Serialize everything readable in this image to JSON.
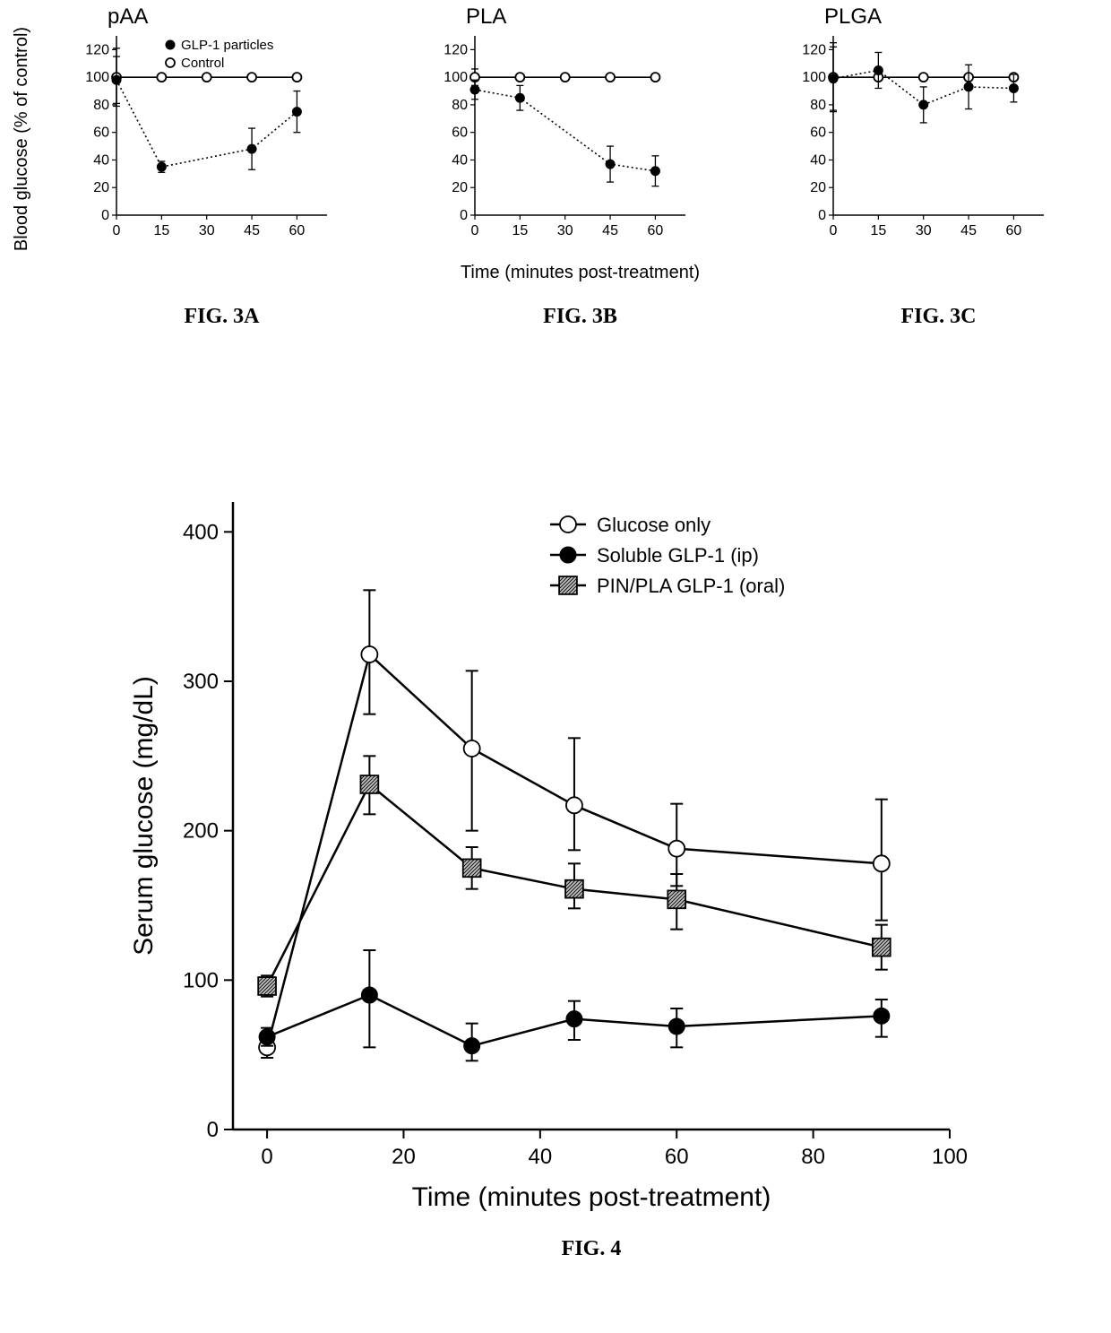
{
  "colors": {
    "bg": "#ffffff",
    "axis": "#000000",
    "text": "#000000",
    "line": "#000000",
    "open_fill": "#ffffff",
    "closed_fill": "#000000",
    "hatch_fill": "#555555"
  },
  "fonts": {
    "panel_title_size": 24,
    "panel_title_weight": "normal",
    "caption_size": 24,
    "caption_family": "Times New Roman, Times, serif",
    "axis_label_size": 20,
    "tick_size": 16,
    "legend_small_size": 15,
    "big_axis_label_size": 30,
    "big_tick_size": 24,
    "big_legend_size": 22
  },
  "top": {
    "shared_x_label": "Time (minutes post-treatment)",
    "shared_y_label": "Blood glucose (% of control)",
    "legend": {
      "panel": "pAA",
      "items": [
        {
          "label": "GLP-1 particles",
          "marker": "closed"
        },
        {
          "label": "Control",
          "marker": "open"
        }
      ]
    },
    "panels": [
      {
        "id": "pAA",
        "title": "pAA",
        "caption": "FIG. 3A",
        "xlim": [
          0,
          70
        ],
        "xticks": [
          0,
          15,
          30,
          45,
          60
        ],
        "ylim": [
          0,
          130
        ],
        "yticks": [
          0,
          20,
          40,
          60,
          80,
          100,
          120
        ],
        "series": [
          {
            "name": "control",
            "marker": "open",
            "dash": "none",
            "points": [
              {
                "x": 0,
                "y": 100,
                "elo": 21,
                "ehi": 21
              },
              {
                "x": 15,
                "y": 100
              },
              {
                "x": 30,
                "y": 100
              },
              {
                "x": 45,
                "y": 100
              },
              {
                "x": 60,
                "y": 100
              }
            ]
          },
          {
            "name": "glp1",
            "marker": "closed",
            "dash": "2,3",
            "points": [
              {
                "x": 0,
                "y": 98,
                "elo": 17,
                "ehi": 17
              },
              {
                "x": 15,
                "y": 35,
                "elo": 4,
                "ehi": 4
              },
              {
                "x": 45,
                "y": 48,
                "elo": 15,
                "ehi": 15
              },
              {
                "x": 60,
                "y": 75,
                "elo": 15,
                "ehi": 15
              }
            ]
          }
        ]
      },
      {
        "id": "PLA",
        "title": "PLA",
        "caption": "FIG. 3B",
        "xlim": [
          0,
          70
        ],
        "xticks": [
          0,
          15,
          30,
          45,
          60
        ],
        "ylim": [
          0,
          130
        ],
        "yticks": [
          0,
          20,
          40,
          60,
          80,
          100,
          120
        ],
        "series": [
          {
            "name": "control",
            "marker": "open",
            "dash": "none",
            "points": [
              {
                "x": 0,
                "y": 100,
                "elo": 6,
                "ehi": 6
              },
              {
                "x": 15,
                "y": 100
              },
              {
                "x": 30,
                "y": 100
              },
              {
                "x": 45,
                "y": 100
              },
              {
                "x": 60,
                "y": 100
              }
            ]
          },
          {
            "name": "glp1",
            "marker": "closed",
            "dash": "2,3",
            "points": [
              {
                "x": 0,
                "y": 91,
                "elo": 7,
                "ehi": 7
              },
              {
                "x": 15,
                "y": 85,
                "elo": 9,
                "ehi": 9
              },
              {
                "x": 45,
                "y": 37,
                "elo": 13,
                "ehi": 13
              },
              {
                "x": 60,
                "y": 32,
                "elo": 11,
                "ehi": 11
              }
            ]
          }
        ]
      },
      {
        "id": "PLGA",
        "title": "PLGA",
        "caption": "FIG. 3C",
        "xlim": [
          0,
          70
        ],
        "xticks": [
          0,
          15,
          30,
          45,
          60
        ],
        "ylim": [
          0,
          130
        ],
        "yticks": [
          0,
          20,
          40,
          60,
          80,
          100,
          120
        ],
        "series": [
          {
            "name": "control",
            "marker": "open",
            "dash": "none",
            "points": [
              {
                "x": 0,
                "y": 100,
                "elo": 25,
                "ehi": 25
              },
              {
                "x": 15,
                "y": 100
              },
              {
                "x": 30,
                "y": 100
              },
              {
                "x": 45,
                "y": 100
              },
              {
                "x": 60,
                "y": 100
              }
            ]
          },
          {
            "name": "glp1",
            "marker": "closed",
            "dash": "2,3",
            "points": [
              {
                "x": 0,
                "y": 99,
                "elo": 23,
                "ehi": 23
              },
              {
                "x": 15,
                "y": 105,
                "elo": 13,
                "ehi": 13
              },
              {
                "x": 30,
                "y": 80,
                "elo": 13,
                "ehi": 13
              },
              {
                "x": 45,
                "y": 93,
                "elo": 16,
                "ehi": 16
              },
              {
                "x": 60,
                "y": 92,
                "elo": 10,
                "ehi": 10
              }
            ]
          }
        ]
      }
    ]
  },
  "fig4": {
    "caption": "FIG. 4",
    "x_label": "Time (minutes post-treatment)",
    "y_label": "Serum glucose (mg/dL)",
    "xlim": [
      -5,
      100
    ],
    "xticks": [
      0,
      20,
      40,
      60,
      80,
      100
    ],
    "ylim": [
      0,
      420
    ],
    "yticks": [
      0,
      100,
      200,
      300,
      400
    ],
    "legend": [
      {
        "label": "Glucose only",
        "marker": "open"
      },
      {
        "label": "Soluble GLP-1 (ip)",
        "marker": "closed"
      },
      {
        "label": "PIN/PLA GLP-1 (oral)",
        "marker": "hatch"
      }
    ],
    "series": [
      {
        "name": "glucose",
        "marker": "open",
        "points": [
          {
            "x": 0,
            "y": 55,
            "elo": 7,
            "ehi": 7
          },
          {
            "x": 15,
            "y": 318,
            "elo": 40,
            "ehi": 43
          },
          {
            "x": 30,
            "y": 255,
            "elo": 55,
            "ehi": 52
          },
          {
            "x": 45,
            "y": 217,
            "elo": 30,
            "ehi": 45
          },
          {
            "x": 60,
            "y": 188,
            "elo": 25,
            "ehi": 30
          },
          {
            "x": 90,
            "y": 178,
            "elo": 38,
            "ehi": 43
          }
        ]
      },
      {
        "name": "soluble",
        "marker": "closed",
        "points": [
          {
            "x": 0,
            "y": 62,
            "elo": 6,
            "ehi": 6
          },
          {
            "x": 15,
            "y": 90,
            "elo": 35,
            "ehi": 30
          },
          {
            "x": 30,
            "y": 56,
            "elo": 10,
            "ehi": 15
          },
          {
            "x": 45,
            "y": 74,
            "elo": 14,
            "ehi": 12
          },
          {
            "x": 60,
            "y": 69,
            "elo": 14,
            "ehi": 12
          },
          {
            "x": 90,
            "y": 76,
            "elo": 14,
            "ehi": 11
          }
        ]
      },
      {
        "name": "pinpla",
        "marker": "hatch",
        "points": [
          {
            "x": 0,
            "y": 96,
            "elo": 7,
            "ehi": 7
          },
          {
            "x": 15,
            "y": 231,
            "elo": 20,
            "ehi": 19
          },
          {
            "x": 30,
            "y": 175,
            "elo": 14,
            "ehi": 14
          },
          {
            "x": 45,
            "y": 161,
            "elo": 13,
            "ehi": 17
          },
          {
            "x": 60,
            "y": 154,
            "elo": 20,
            "ehi": 17
          },
          {
            "x": 90,
            "y": 122,
            "elo": 15,
            "ehi": 15
          }
        ]
      }
    ]
  }
}
